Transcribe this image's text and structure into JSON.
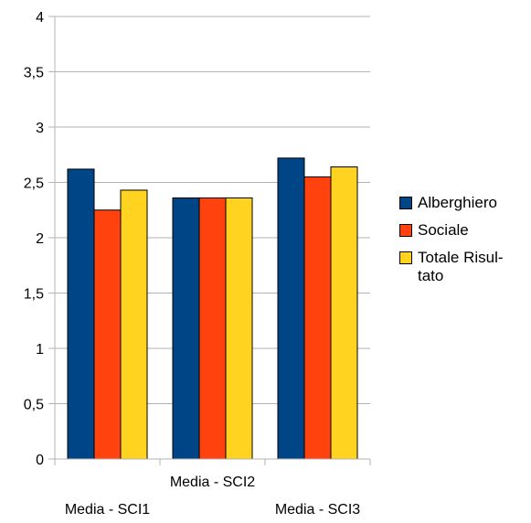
{
  "chart_data": {
    "type": "bar",
    "categories": [
      "Media - SCI1",
      "Media - SCI2",
      "Media - SCI3"
    ],
    "series": [
      {
        "name": "Alberghiero",
        "color": "#004586",
        "values": [
          2.62,
          2.36,
          2.72
        ]
      },
      {
        "name": "Sociale",
        "color": "#ff420e",
        "values": [
          2.25,
          2.36,
          2.55
        ]
      },
      {
        "name": "Totale Risultato",
        "color": "#ffd320",
        "values": [
          2.43,
          2.36,
          2.64
        ]
      }
    ],
    "ylim": [
      0,
      4
    ],
    "yticks": [
      "0",
      "0,5",
      "1",
      "1,5",
      "2",
      "2,5",
      "3",
      "3,5",
      "4"
    ],
    "grid": true,
    "legend_position": "right"
  }
}
